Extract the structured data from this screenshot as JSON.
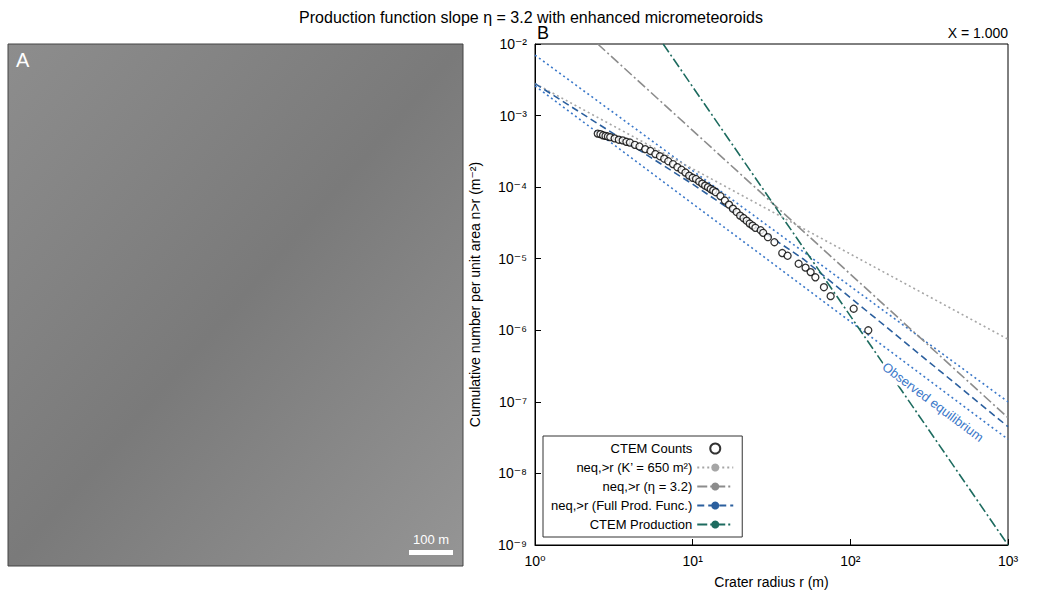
{
  "image_panel": {
    "label": "A",
    "scale_bar_label": "100 m"
  },
  "chart_data": {
    "type": "line",
    "title": "Production function slope η = 3.2 with enhanced micrometeoroids",
    "subtitle": "X = 1.000",
    "panel_label": "B",
    "xlabel": "Crater radius r (m)",
    "ylabel": "Cumulative number per unit area n>r (m⁻²)",
    "log": true,
    "grid": false,
    "legend": "lower left",
    "xlim": [
      1,
      1000
    ],
    "xticks": [
      {
        "value": 1,
        "label": "10⁰"
      },
      {
        "value": 10,
        "label": "10¹"
      },
      {
        "value": 100,
        "label": "10²"
      },
      {
        "value": 1000,
        "label": "10³"
      }
    ],
    "ylim": [
      1e-09,
      0.01
    ],
    "yticks": [
      {
        "value": 1e-09,
        "label": "10⁻⁹"
      },
      {
        "value": 1e-08,
        "label": "10⁻⁸"
      },
      {
        "value": 1e-07,
        "label": "10⁻⁷"
      },
      {
        "value": 1e-06,
        "label": "10⁻⁶"
      },
      {
        "value": 1e-05,
        "label": "10⁻⁵"
      },
      {
        "value": 0.0001,
        "label": "10⁻⁴"
      },
      {
        "value": 0.001,
        "label": "10⁻³"
      },
      {
        "value": 0.01,
        "label": "10⁻²"
      }
    ],
    "series": [
      {
        "name": "CTEM Counts",
        "type": "scatter",
        "marker": "circle",
        "color": "#000000",
        "x": [
          2.5,
          2.6,
          2.7,
          2.8,
          2.9,
          3.0,
          3.2,
          3.4,
          3.6,
          3.8,
          4.0,
          4.3,
          4.6,
          5.0,
          5.4,
          5.8,
          6.2,
          6.6,
          7.0,
          7.5,
          8.0,
          8.5,
          9.0,
          9.5,
          10,
          10.5,
          11,
          11.5,
          12,
          12.5,
          13,
          13.5,
          14,
          15,
          16,
          17,
          18,
          19,
          20,
          21,
          22,
          23,
          24,
          25,
          27,
          28,
          30,
          33,
          37,
          40,
          47,
          52,
          56,
          60,
          68,
          75,
          105,
          130
        ],
        "values": [
          0.00056,
          0.00055,
          0.00053,
          0.00052,
          0.00051,
          0.0005,
          0.00048,
          0.00046,
          0.00045,
          0.00043,
          0.00042,
          0.00039,
          0.00037,
          0.00034,
          0.00032,
          0.00029,
          0.00027,
          0.00025,
          0.00023,
          0.00021,
          0.00019,
          0.000175,
          0.00016,
          0.000145,
          0.000135,
          0.00013,
          0.00012,
          0.000112,
          0.000105,
          0.0001,
          9.4e-05,
          9e-05,
          8.5e-05,
          7.5e-05,
          6.5e-05,
          5.7e-05,
          5e-05,
          4.5e-05,
          4e-05,
          3.7e-05,
          3.4e-05,
          3.1e-05,
          2.9e-05,
          2.7e-05,
          2.5e-05,
          2.3e-05,
          2e-05,
          1.7e-05,
          1.2e-05,
          1.1e-05,
          8.5e-06,
          7.5e-06,
          6.5e-06,
          5.5e-06,
          4e-06,
          3e-06,
          2e-06,
          1e-06
        ]
      },
      {
        "name": "neq,>r (K’ = 650 m²)",
        "type": "line",
        "line_style": "dotted",
        "color": "#a6a6a6",
        "x": [
          1,
          1000
        ],
        "values": [
          0.0028,
          7.5e-07
        ]
      },
      {
        "name": "neq,>r (η = 3.2)",
        "type": "line",
        "line_style": "dashdot",
        "color": "#8c8c8c",
        "x": [
          2.5,
          1000
        ],
        "values": [
          0.01,
          6e-08
        ]
      },
      {
        "name": "neq,>r (Full Prod. Func.)",
        "type": "line",
        "line_style": "dashed",
        "color": "#2b5f9e",
        "x": [
          1,
          10,
          50,
          1000
        ],
        "values": [
          0.0028,
          0.00011,
          1e-05,
          4.5e-08
        ]
      },
      {
        "name": "CTEM Production",
        "type": "line",
        "line_style": "dashdot",
        "color": "#1d6b5f",
        "x": [
          6.5,
          1000
        ],
        "values": [
          0.01,
          1e-09
        ]
      }
    ],
    "bands": [
      {
        "label": "Observed equilibrium",
        "color": "#3b78c9",
        "line_style": "dotted",
        "upper": {
          "x": [
            1,
            1000
          ],
          "values": [
            0.007,
            1e-07
          ]
        },
        "lower": {
          "x": [
            1,
            1000
          ],
          "values": [
            0.0026,
            3e-08
          ]
        }
      }
    ]
  }
}
